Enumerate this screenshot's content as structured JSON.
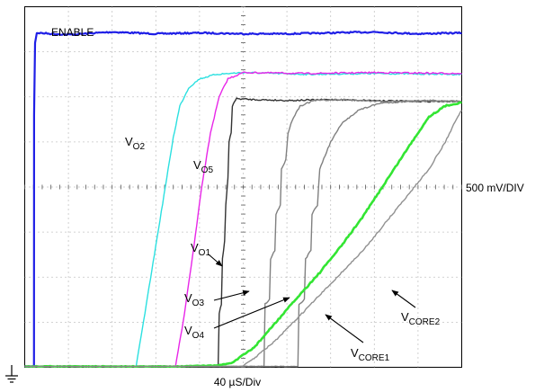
{
  "chart_data": {
    "type": "line",
    "title": "",
    "xlabel": "40 µS/Div",
    "ylabel": "500 mV/DIV",
    "x_unit": "µs",
    "y_unit": "V",
    "xlim": [
      0,
      400
    ],
    "ylim": [
      0,
      4
    ],
    "grid": true,
    "legend": "none",
    "series": [
      {
        "name": "ENABLE",
        "color": "#1f1fe6",
        "points": [
          [
            0,
            0.01
          ],
          [
            8.5,
            0.01
          ],
          [
            8.6,
            2.8
          ],
          [
            9.5,
            3.6
          ],
          [
            11,
            3.71
          ],
          [
            40,
            3.69
          ],
          [
            80,
            3.72
          ],
          [
            120,
            3.7
          ],
          [
            160,
            3.71
          ],
          [
            200,
            3.7
          ],
          [
            240,
            3.7
          ],
          [
            280,
            3.71
          ],
          [
            320,
            3.72
          ],
          [
            360,
            3.7
          ],
          [
            400,
            3.71
          ]
        ],
        "label_text": "ENABLE"
      },
      {
        "name": "VO2",
        "color": "#2be0e0",
        "points": [
          [
            0,
            0.01
          ],
          [
            102,
            0.01
          ],
          [
            110,
            0.6
          ],
          [
            120,
            1.35
          ],
          [
            130,
            2.1
          ],
          [
            136,
            2.55
          ],
          [
            142,
            2.9
          ],
          [
            150,
            3.1
          ],
          [
            160,
            3.2
          ],
          [
            175,
            3.25
          ],
          [
            200,
            3.27
          ],
          [
            260,
            3.25
          ],
          [
            320,
            3.26
          ],
          [
            400,
            3.25
          ]
        ],
        "label_main": "V",
        "label_sub": "O2"
      },
      {
        "name": "VO5",
        "color": "#e826e8",
        "points": [
          [
            0,
            0.01
          ],
          [
            138,
            0.01
          ],
          [
            145,
            0.5
          ],
          [
            155,
            1.35
          ],
          [
            162,
            2.0
          ],
          [
            170,
            2.6
          ],
          [
            178,
            3.0
          ],
          [
            186,
            3.2
          ],
          [
            200,
            3.27
          ],
          [
            260,
            3.26
          ],
          [
            320,
            3.27
          ],
          [
            400,
            3.26
          ]
        ],
        "label_main": "V",
        "label_sub": "O5"
      },
      {
        "name": "VO1",
        "color": "#333333",
        "points": [
          [
            0,
            0.01
          ],
          [
            177,
            0.01
          ],
          [
            178,
            0.6
          ],
          [
            180,
            0.7
          ],
          [
            181,
            1.2
          ],
          [
            183,
            1.4
          ],
          [
            184,
            1.8
          ],
          [
            186,
            2.1
          ],
          [
            187,
            2.5
          ],
          [
            189,
            2.6
          ],
          [
            190,
            2.9
          ],
          [
            192,
            2.95
          ],
          [
            194,
            2.98
          ],
          [
            210,
            2.97
          ],
          [
            240,
            2.96
          ],
          [
            280,
            2.97
          ],
          [
            320,
            2.96
          ],
          [
            360,
            2.95
          ],
          [
            400,
            2.95
          ]
        ],
        "label_main": "V",
        "label_sub": "O1"
      },
      {
        "name": "VO3",
        "color": "#808080",
        "points": [
          [
            0,
            0.01
          ],
          [
            219,
            0.01
          ],
          [
            220,
            0.7
          ],
          [
            224,
            0.75
          ],
          [
            225,
            1.2
          ],
          [
            229,
            1.3
          ],
          [
            230,
            1.7
          ],
          [
            234,
            1.8
          ],
          [
            235,
            2.2
          ],
          [
            239,
            2.3
          ],
          [
            241,
            2.6
          ],
          [
            245,
            2.75
          ],
          [
            252,
            2.9
          ],
          [
            265,
            2.96
          ],
          [
            290,
            2.97
          ],
          [
            330,
            2.95
          ],
          [
            370,
            2.96
          ],
          [
            400,
            2.95
          ]
        ],
        "label_main": "V",
        "label_sub": "O3"
      },
      {
        "name": "VO4",
        "color": "#808080",
        "points": [
          [
            0,
            0.01
          ],
          [
            250,
            0.01
          ],
          [
            251,
            0.7
          ],
          [
            256,
            0.75
          ],
          [
            257,
            1.2
          ],
          [
            262,
            1.3
          ],
          [
            263,
            1.7
          ],
          [
            268,
            1.8
          ],
          [
            270,
            2.2
          ],
          [
            275,
            2.35
          ],
          [
            280,
            2.5
          ],
          [
            290,
            2.7
          ],
          [
            305,
            2.85
          ],
          [
            325,
            2.93
          ],
          [
            350,
            2.95
          ],
          [
            375,
            2.95
          ],
          [
            400,
            2.95
          ]
        ],
        "label_main": "V",
        "label_sub": "O4"
      },
      {
        "name": "VCORE1",
        "color": "#33e533",
        "points": [
          [
            0,
            0.01
          ],
          [
            140,
            0.01
          ],
          [
            176,
            0.02
          ],
          [
            190,
            0.05
          ],
          [
            210,
            0.22
          ],
          [
            230,
            0.5
          ],
          [
            250,
            0.78
          ],
          [
            270,
            1.05
          ],
          [
            290,
            1.35
          ],
          [
            310,
            1.68
          ],
          [
            330,
            2.05
          ],
          [
            350,
            2.42
          ],
          [
            370,
            2.78
          ],
          [
            385,
            2.9
          ],
          [
            400,
            2.94
          ]
        ],
        "label_main": "V",
        "label_sub": "CORE1"
      },
      {
        "name": "VCORE2",
        "color": "#909090",
        "points": [
          [
            0,
            0.01
          ],
          [
            199,
            0.01
          ],
          [
            210,
            0.1
          ],
          [
            230,
            0.3
          ],
          [
            250,
            0.55
          ],
          [
            270,
            0.8
          ],
          [
            290,
            1.05
          ],
          [
            310,
            1.3
          ],
          [
            330,
            1.6
          ],
          [
            350,
            1.9
          ],
          [
            370,
            2.2
          ],
          [
            385,
            2.5
          ],
          [
            395,
            2.75
          ],
          [
            400,
            2.85
          ]
        ],
        "label_main": "V",
        "label_sub": "CORE2"
      }
    ],
    "annotations": [
      {
        "target": "VO1",
        "label_main": "V",
        "label_sub": "O1"
      },
      {
        "target": "VO3",
        "label_main": "V",
        "label_sub": "O3"
      },
      {
        "target": "VO4",
        "label_main": "V",
        "label_sub": "O4"
      },
      {
        "target": "VCORE1",
        "label_main": "V",
        "label_sub": "CORE1"
      },
      {
        "target": "VCORE2",
        "label_main": "V",
        "label_sub": "CORE2"
      }
    ]
  }
}
